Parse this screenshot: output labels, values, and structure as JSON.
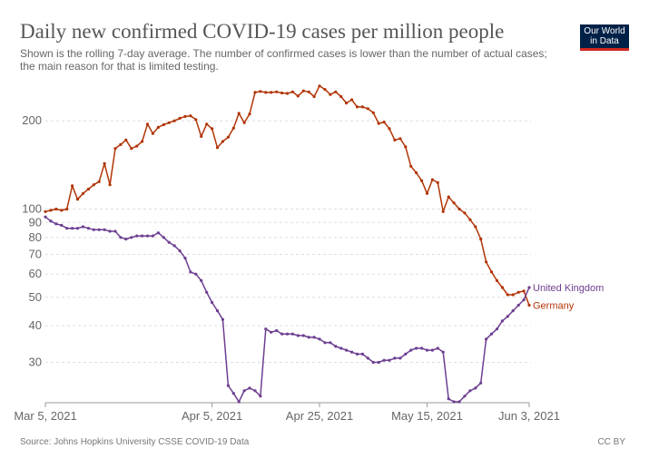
{
  "header": {
    "title": "Daily new confirmed COVID-19 cases per million people",
    "subtitle": "Shown is the rolling 7-day average. The number of confirmed cases is lower than the number of actual cases; the main reason for that is limited testing."
  },
  "logo": {
    "line1": "Our World",
    "line2": "in Data"
  },
  "footer": {
    "source": "Source: Johns Hopkins University CSSE COVID-19 Data",
    "license": "CC BY"
  },
  "chart_data": {
    "type": "line",
    "x_axis": {
      "type": "date",
      "start": "2021-03-05",
      "end": "2021-06-03",
      "ticks": [
        "Mar 5, 2021",
        "Apr 5, 2021",
        "Apr 25, 2021",
        "May 15, 2021",
        "Jun 3, 2021"
      ]
    },
    "y_axis": {
      "scale": "log",
      "ylim": [
        22,
        280
      ],
      "ticks": [
        200,
        100,
        90,
        80,
        70,
        60,
        50,
        40,
        30
      ]
    },
    "grid": "horizontal-dashed",
    "series": [
      {
        "name": "Germany",
        "color": "#b13507",
        "values": [
          [
            "2021-03-05",
            98
          ],
          [
            "2021-03-06",
            99
          ],
          [
            "2021-03-07",
            100
          ],
          [
            "2021-03-08",
            99
          ],
          [
            "2021-03-09",
            100
          ],
          [
            "2021-03-10",
            120
          ],
          [
            "2021-03-11",
            108
          ],
          [
            "2021-03-12",
            113
          ],
          [
            "2021-03-13",
            117
          ],
          [
            "2021-03-14",
            121
          ],
          [
            "2021-03-15",
            124
          ],
          [
            "2021-03-16",
            143
          ],
          [
            "2021-03-17",
            121
          ],
          [
            "2021-03-18",
            161
          ],
          [
            "2021-03-19",
            166
          ],
          [
            "2021-03-20",
            172
          ],
          [
            "2021-03-21",
            161
          ],
          [
            "2021-03-22",
            164
          ],
          [
            "2021-03-23",
            170
          ],
          [
            "2021-03-24",
            195
          ],
          [
            "2021-03-25",
            181
          ],
          [
            "2021-03-26",
            190
          ],
          [
            "2021-03-27",
            194
          ],
          [
            "2021-03-28",
            197
          ],
          [
            "2021-03-29",
            200
          ],
          [
            "2021-03-30",
            204
          ],
          [
            "2021-03-31",
            207
          ],
          [
            "2021-04-01",
            208
          ],
          [
            "2021-04-02",
            202
          ],
          [
            "2021-04-03",
            177
          ],
          [
            "2021-04-04",
            195
          ],
          [
            "2021-04-05",
            188
          ],
          [
            "2021-04-06",
            162
          ],
          [
            "2021-04-07",
            170
          ],
          [
            "2021-04-08",
            176
          ],
          [
            "2021-04-09",
            189
          ],
          [
            "2021-04-10",
            212
          ],
          [
            "2021-04-11",
            197
          ],
          [
            "2021-04-12",
            211
          ],
          [
            "2021-04-13",
            250
          ],
          [
            "2021-04-14",
            252
          ],
          [
            "2021-04-15",
            250
          ],
          [
            "2021-04-16",
            250
          ],
          [
            "2021-04-17",
            251
          ],
          [
            "2021-04-18",
            249
          ],
          [
            "2021-04-19",
            248
          ],
          [
            "2021-04-20",
            251
          ],
          [
            "2021-04-21",
            243
          ],
          [
            "2021-04-22",
            253
          ],
          [
            "2021-04-23",
            251
          ],
          [
            "2021-04-24",
            242
          ],
          [
            "2021-04-25",
            263
          ],
          [
            "2021-04-26",
            256
          ],
          [
            "2021-04-27",
            246
          ],
          [
            "2021-04-28",
            251
          ],
          [
            "2021-04-29",
            242
          ],
          [
            "2021-04-30",
            230
          ],
          [
            "2021-05-01",
            236
          ],
          [
            "2021-05-02",
            223
          ],
          [
            "2021-05-03",
            223
          ],
          [
            "2021-05-04",
            220
          ],
          [
            "2021-05-05",
            213
          ],
          [
            "2021-05-06",
            196
          ],
          [
            "2021-05-07",
            198
          ],
          [
            "2021-05-08",
            188
          ],
          [
            "2021-05-09",
            172
          ],
          [
            "2021-05-10",
            174
          ],
          [
            "2021-05-11",
            163
          ],
          [
            "2021-05-12",
            140
          ],
          [
            "2021-05-13",
            133
          ],
          [
            "2021-05-14",
            125
          ],
          [
            "2021-05-15",
            113
          ],
          [
            "2021-05-16",
            126
          ],
          [
            "2021-05-17",
            123
          ],
          [
            "2021-05-18",
            98
          ],
          [
            "2021-05-19",
            110
          ],
          [
            "2021-05-20",
            105
          ],
          [
            "2021-05-21",
            100
          ],
          [
            "2021-05-22",
            97
          ],
          [
            "2021-05-23",
            92
          ],
          [
            "2021-05-24",
            87
          ],
          [
            "2021-05-25",
            79
          ],
          [
            "2021-05-26",
            66
          ],
          [
            "2021-05-27",
            61
          ],
          [
            "2021-05-28",
            57
          ],
          [
            "2021-05-29",
            54
          ],
          [
            "2021-05-30",
            51
          ],
          [
            "2021-05-31",
            51
          ],
          [
            "2021-06-01",
            52
          ],
          [
            "2021-06-02",
            52.5
          ],
          [
            "2021-06-03",
            47
          ]
        ]
      },
      {
        "name": "United Kingdom",
        "color": "#6d3e91",
        "values": [
          [
            "2021-03-05",
            94
          ],
          [
            "2021-03-06",
            91
          ],
          [
            "2021-03-07",
            89
          ],
          [
            "2021-03-08",
            88
          ],
          [
            "2021-03-09",
            86
          ],
          [
            "2021-03-10",
            86
          ],
          [
            "2021-03-11",
            86
          ],
          [
            "2021-03-12",
            87
          ],
          [
            "2021-03-13",
            86
          ],
          [
            "2021-03-14",
            85
          ],
          [
            "2021-03-15",
            85
          ],
          [
            "2021-03-16",
            85
          ],
          [
            "2021-03-17",
            84
          ],
          [
            "2021-03-18",
            84
          ],
          [
            "2021-03-19",
            80
          ],
          [
            "2021-03-20",
            79
          ],
          [
            "2021-03-21",
            80
          ],
          [
            "2021-03-22",
            81
          ],
          [
            "2021-03-23",
            81
          ],
          [
            "2021-03-24",
            81
          ],
          [
            "2021-03-25",
            81
          ],
          [
            "2021-03-26",
            83
          ],
          [
            "2021-03-27",
            80
          ],
          [
            "2021-03-28",
            77
          ],
          [
            "2021-03-29",
            75
          ],
          [
            "2021-03-30",
            72
          ],
          [
            "2021-03-31",
            68
          ],
          [
            "2021-04-01",
            61
          ],
          [
            "2021-04-02",
            60
          ],
          [
            "2021-04-03",
            57
          ],
          [
            "2021-04-04",
            52
          ],
          [
            "2021-04-05",
            48
          ],
          [
            "2021-04-06",
            45
          ],
          [
            "2021-04-07",
            42
          ],
          [
            "2021-04-08",
            25
          ],
          [
            "2021-04-09",
            23.5
          ],
          [
            "2021-04-10",
            22
          ],
          [
            "2021-04-11",
            24
          ],
          [
            "2021-04-12",
            24.5
          ],
          [
            "2021-04-13",
            24
          ],
          [
            "2021-04-14",
            23
          ],
          [
            "2021-04-15",
            39
          ],
          [
            "2021-04-16",
            38
          ],
          [
            "2021-04-17",
            38.5
          ],
          [
            "2021-04-18",
            37.5
          ],
          [
            "2021-04-19",
            37.5
          ],
          [
            "2021-04-20",
            37.5
          ],
          [
            "2021-04-21",
            37
          ],
          [
            "2021-04-22",
            37
          ],
          [
            "2021-04-23",
            36.5
          ],
          [
            "2021-04-24",
            36.5
          ],
          [
            "2021-04-25",
            36
          ],
          [
            "2021-04-26",
            35
          ],
          [
            "2021-04-27",
            35
          ],
          [
            "2021-04-28",
            34
          ],
          [
            "2021-04-29",
            33.5
          ],
          [
            "2021-04-30",
            33
          ],
          [
            "2021-05-01",
            32.5
          ],
          [
            "2021-05-02",
            32
          ],
          [
            "2021-05-03",
            32
          ],
          [
            "2021-05-04",
            31
          ],
          [
            "2021-05-05",
            30
          ],
          [
            "2021-05-06",
            30
          ],
          [
            "2021-05-07",
            30.5
          ],
          [
            "2021-05-08",
            30.5
          ],
          [
            "2021-05-09",
            31
          ],
          [
            "2021-05-10",
            31
          ],
          [
            "2021-05-11",
            32
          ],
          [
            "2021-05-12",
            33
          ],
          [
            "2021-05-13",
            33.5
          ],
          [
            "2021-05-14",
            33.5
          ],
          [
            "2021-05-15",
            33
          ],
          [
            "2021-05-16",
            33
          ],
          [
            "2021-05-17",
            33.5
          ],
          [
            "2021-05-18",
            32.5
          ],
          [
            "2021-05-19",
            22.5
          ],
          [
            "2021-05-20",
            22
          ],
          [
            "2021-05-21",
            22
          ],
          [
            "2021-05-22",
            23
          ],
          [
            "2021-05-23",
            24
          ],
          [
            "2021-05-24",
            24.5
          ],
          [
            "2021-05-25",
            25.5
          ],
          [
            "2021-05-26",
            36
          ],
          [
            "2021-05-27",
            37.5
          ],
          [
            "2021-05-28",
            39
          ],
          [
            "2021-05-29",
            41.5
          ],
          [
            "2021-05-30",
            43
          ],
          [
            "2021-05-31",
            45
          ],
          [
            "2021-06-01",
            47
          ],
          [
            "2021-06-02",
            49
          ],
          [
            "2021-06-03",
            54
          ]
        ]
      }
    ]
  }
}
